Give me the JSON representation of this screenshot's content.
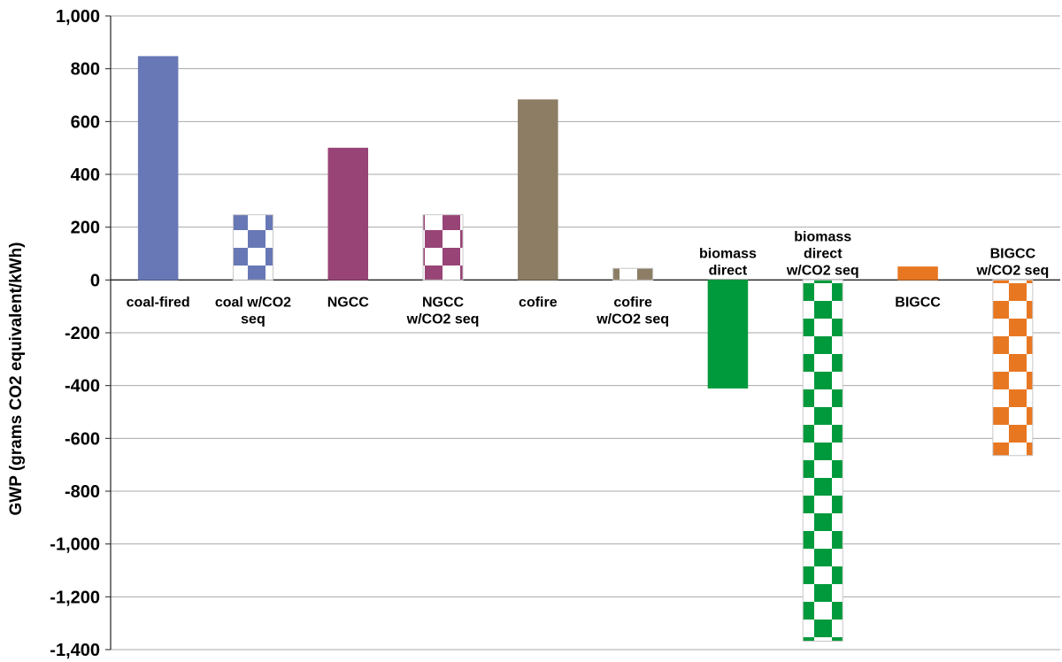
{
  "chart_data": {
    "type": "bar",
    "ylabel": "GWP (grams CO2 equivalent/kWh)",
    "xlabel": "",
    "ylim": [
      -1400,
      1000
    ],
    "yticks": [
      1000,
      800,
      600,
      400,
      200,
      0,
      -200,
      -400,
      -600,
      -800,
      -1000,
      -1200,
      -1400
    ],
    "ytick_labels": [
      "1,000",
      "800",
      "600",
      "400",
      "200",
      "0",
      "-200",
      "-400",
      "-600",
      "-800",
      "-1,000",
      "-1,200",
      "-1,400"
    ],
    "grid": true,
    "categories": [
      "coal-fired",
      "coal w/CO2 seq",
      "NGCC",
      "NGCC w/CO2 seq",
      "cofire",
      "cofire w/CO2 seq",
      "biomass direct",
      "biomass direct w/CO2 seq",
      "BIGCC",
      "BIGCC w/CO2 seq"
    ],
    "category_label_lines": [
      [
        "coal-fired"
      ],
      [
        "coal w/CO2",
        "seq"
      ],
      [
        "NGCC"
      ],
      [
        "NGCC",
        "w/CO2 seq"
      ],
      [
        "cofire"
      ],
      [
        "cofire",
        "w/CO2 seq"
      ],
      [
        "biomass",
        "direct"
      ],
      [
        "biomass",
        "direct",
        "w/CO2 seq"
      ],
      [
        "BIGCC"
      ],
      [
        "BIGCC",
        "w/CO2 seq"
      ]
    ],
    "values": [
      847,
      247,
      500,
      247,
      683,
      44,
      -410,
      -1368,
      50,
      -665
    ],
    "colors": [
      "#6878b6",
      "#6878b6",
      "#984476",
      "#984476",
      "#8c7d64",
      "#8c7d64",
      "#009a3c",
      "#009a3c",
      "#e87722",
      "#e87722"
    ],
    "patterns": [
      "solid",
      "checker",
      "solid",
      "checker",
      "solid",
      "checker",
      "solid",
      "checker",
      "solid",
      "checker"
    ]
  }
}
